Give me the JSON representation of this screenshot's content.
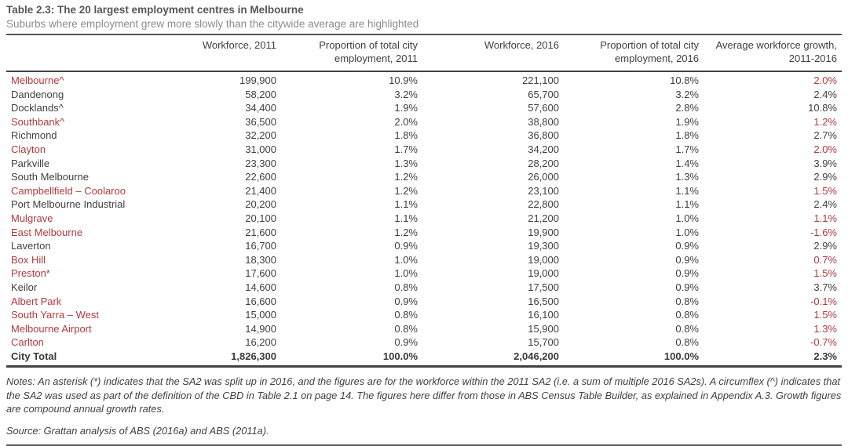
{
  "table": {
    "title": "Table 2.3: The 20 largest employment centres in Melbourne",
    "subtitle": "Suburbs where employment grew more slowly than the citywide average are highlighted",
    "columns": [
      "",
      "Workforce, 2011",
      "Proportion of total city employment, 2011",
      "Workforce, 2016",
      "Proportion of total city employment, 2016",
      "Average workforce growth, 2011-2016"
    ],
    "rows": [
      {
        "name": "Melbourne^",
        "wf2011": "199,900",
        "prop2011": "10.9%",
        "wf2016": "221,100",
        "prop2016": "10.8%",
        "growth": "2.0%",
        "highlighted": true
      },
      {
        "name": "Dandenong",
        "wf2011": "58,200",
        "prop2011": "3.2%",
        "wf2016": "65,700",
        "prop2016": "3.2%",
        "growth": "2.4%",
        "highlighted": false
      },
      {
        "name": "Docklands^",
        "wf2011": "34,400",
        "prop2011": "1.9%",
        "wf2016": "57,600",
        "prop2016": "2.8%",
        "growth": "10.8%",
        "highlighted": false
      },
      {
        "name": "Southbank^",
        "wf2011": "36,500",
        "prop2011": "2.0%",
        "wf2016": "38,800",
        "prop2016": "1.9%",
        "growth": "1.2%",
        "highlighted": true
      },
      {
        "name": "Richmond",
        "wf2011": "32,200",
        "prop2011": "1.8%",
        "wf2016": "36,800",
        "prop2016": "1.8%",
        "growth": "2.7%",
        "highlighted": false
      },
      {
        "name": "Clayton",
        "wf2011": "31,000",
        "prop2011": "1.7%",
        "wf2016": "34,200",
        "prop2016": "1.7%",
        "growth": "2.0%",
        "highlighted": true
      },
      {
        "name": "Parkville",
        "wf2011": "23,300",
        "prop2011": "1.3%",
        "wf2016": "28,200",
        "prop2016": "1.4%",
        "growth": "3.9%",
        "highlighted": false
      },
      {
        "name": "South Melbourne",
        "wf2011": "22,600",
        "prop2011": "1.2%",
        "wf2016": "26,000",
        "prop2016": "1.3%",
        "growth": "2.9%",
        "highlighted": false
      },
      {
        "name": "Campbellfield – Coolaroo",
        "wf2011": "21,400",
        "prop2011": "1.2%",
        "wf2016": "23,100",
        "prop2016": "1.1%",
        "growth": "1.5%",
        "highlighted": true
      },
      {
        "name": "Port Melbourne Industrial",
        "wf2011": "20,200",
        "prop2011": "1.1%",
        "wf2016": "22,800",
        "prop2016": "1.1%",
        "growth": "2.4%",
        "highlighted": false
      },
      {
        "name": "Mulgrave",
        "wf2011": "20,100",
        "prop2011": "1.1%",
        "wf2016": "21,200",
        "prop2016": "1.0%",
        "growth": "1.1%",
        "highlighted": true
      },
      {
        "name": "East Melbourne",
        "wf2011": "21,600",
        "prop2011": "1.2%",
        "wf2016": "19,900",
        "prop2016": "1.0%",
        "growth": "-1.6%",
        "highlighted": true
      },
      {
        "name": "Laverton",
        "wf2011": "16,700",
        "prop2011": "0.9%",
        "wf2016": "19,300",
        "prop2016": "0.9%",
        "growth": "2.9%",
        "highlighted": false
      },
      {
        "name": "Box Hill",
        "wf2011": "18,300",
        "prop2011": "1.0%",
        "wf2016": "19,000",
        "prop2016": "0.9%",
        "growth": "0.7%",
        "highlighted": true
      },
      {
        "name": "Preston*",
        "wf2011": "17,600",
        "prop2011": "1.0%",
        "wf2016": "19,000",
        "prop2016": "0.9%",
        "growth": "1.5%",
        "highlighted": true
      },
      {
        "name": "Keilor",
        "wf2011": "14,600",
        "prop2011": "0.8%",
        "wf2016": "17,500",
        "prop2016": "0.9%",
        "growth": "3.7%",
        "highlighted": false
      },
      {
        "name": "Albert Park",
        "wf2011": "16,600",
        "prop2011": "0.9%",
        "wf2016": "16,500",
        "prop2016": "0.8%",
        "growth": "-0.1%",
        "highlighted": true
      },
      {
        "name": "South Yarra – West",
        "wf2011": "15,000",
        "prop2011": "0.8%",
        "wf2016": "16,100",
        "prop2016": "0.8%",
        "growth": "1.5%",
        "highlighted": true
      },
      {
        "name": "Melbourne Airport",
        "wf2011": "14,900",
        "prop2011": "0.8%",
        "wf2016": "15,900",
        "prop2016": "0.8%",
        "growth": "1.3%",
        "highlighted": true
      },
      {
        "name": "Carlton",
        "wf2011": "16,200",
        "prop2011": "0.9%",
        "wf2016": "15,700",
        "prop2016": "0.8%",
        "growth": "-0.7%",
        "highlighted": true
      },
      {
        "name": "City Total",
        "wf2011": "1,826,300",
        "prop2011": "100.0%",
        "wf2016": "2,046,200",
        "prop2016": "100.0%",
        "growth": "2.3%",
        "highlighted": false,
        "bold": true
      }
    ],
    "notes": "Notes: An asterisk (*) indicates that the SA2 was split up in 2016, and the figures are for the workforce within the 2011 SA2 (i.e. a sum of multiple 2016 SA2s). A circumflex (^) indicates that the SA2 was used as part of the definition of the CBD in Table 2.1 on page 14. The figures here differ from those in ABS Census Table Builder, as explained in Appendix A.3. Growth figures are compound annual growth rates.",
    "source": "Source: Grattan analysis of ABS (2016a) and ABS (2011a)."
  },
  "colors": {
    "highlight_red": "#b03a3e",
    "body_text": "#414042",
    "title_text": "#56575a",
    "subtitle_text": "#8a8c8f",
    "rule": "#404143"
  }
}
